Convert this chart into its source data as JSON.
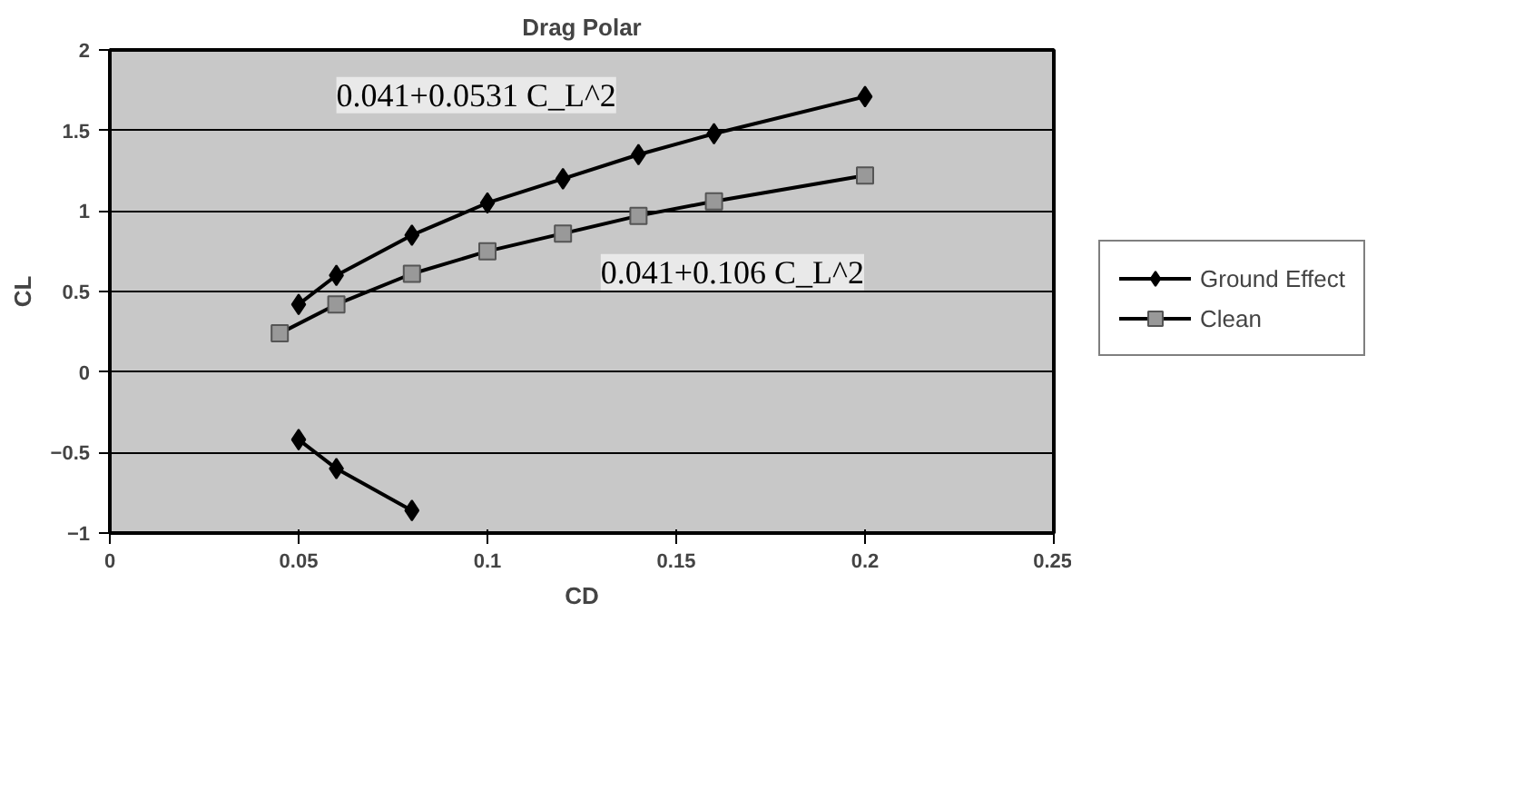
{
  "chart_data": {
    "type": "line",
    "title": "Drag Polar",
    "xlabel": "CD",
    "ylabel": "CL",
    "xlim": [
      0,
      0.25
    ],
    "xticks": [
      0,
      0.05,
      0.1,
      0.15,
      0.2,
      0.25
    ],
    "ylim": [
      -1,
      2
    ],
    "yticks": [
      -1,
      -0.5,
      0,
      0.5,
      1,
      1.5,
      2
    ],
    "grid": "y",
    "legend": "right",
    "line_style": "solid",
    "series": [
      {
        "name": "Ground Effect",
        "color": "#000000",
        "marker": "diamond",
        "x": [
          0.05,
          0.06,
          0.08,
          0.1,
          0.12,
          0.14,
          0.16,
          0.2,
          null,
          0.05,
          0.06,
          0.08
        ],
        "values": [
          0.42,
          0.6,
          0.85,
          1.05,
          1.2,
          1.35,
          1.48,
          1.71,
          null,
          -0.42,
          -0.6,
          -0.86
        ]
      },
      {
        "name": "Clean",
        "color": "#999999",
        "marker": "square",
        "x": [
          0.045,
          0.06,
          0.08,
          0.1,
          0.12,
          0.14,
          0.16,
          0.2
        ],
        "values": [
          0.24,
          0.42,
          0.61,
          0.75,
          0.86,
          0.97,
          1.06,
          1.22
        ]
      }
    ],
    "annotations": [
      "0.041+0.0531 C_L^2",
      "0.041+0.106 C_L^2"
    ]
  }
}
